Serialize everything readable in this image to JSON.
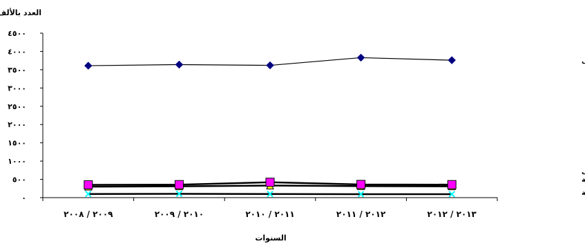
{
  "chart_data": {
    "type": "line",
    "title": "",
    "ylabel": "العدد بالألف",
    "xlabel": "السنوات",
    "ylim": [
      0,
      4500
    ],
    "y_ticks": [
      0,
      500,
      1000,
      1500,
      2000,
      2500,
      3000,
      3500,
      4000,
      4500
    ],
    "y_tick_labels": [
      "٠",
      "٥٠٠",
      "١٠٠٠",
      "١٥٠٠",
      "٢٠٠٠",
      "٢٥٠٠",
      "٣٠٠٠",
      "٣٥٠٠",
      "٤٠٠٠",
      "٤٥٠٠"
    ],
    "categories": [
      "٢٠٠٩ / ٢٠٠٨",
      "٢٠١٠ / ٢٠٠٩",
      "٢٠١١ / ٢٠١٠",
      "٢٠١٢ / ٢٠١١",
      "٢٠١٣ / ٢٠١٢"
    ],
    "grid": false,
    "legend": "inline-right",
    "series": [
      {
        "name": "الجمعيات التعاونية للإئتمان الزراعى",
        "marker": "diamond",
        "color": "#000080",
        "values": [
          3610,
          3640,
          3620,
          3830,
          3760
        ]
      },
      {
        "name": "الجمعيات التعاونية للإصلاح الزراعى",
        "marker": "square",
        "color": "#000000",
        "marker_fill": "#ff00ff",
        "values": [
          350,
          355,
          420,
          360,
          355
        ]
      },
      {
        "name": "الجمعيات التعاونية للأراضى المستصلحة",
        "marker": "triangle",
        "color": "#000000",
        "marker_fill": "#ffff00",
        "values": [
          300,
          310,
          330,
          315,
          310
        ]
      },
      {
        "name": "الجمعيات التعاونية  للثروة المائية",
        "marker": "x",
        "color": "#000000",
        "marker_fill": "#00ffff",
        "values": [
          100,
          105,
          100,
          95,
          95
        ]
      }
    ]
  }
}
